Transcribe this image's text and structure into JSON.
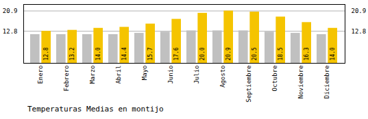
{
  "chart_data": {
    "type": "bar",
    "title": "Temperaturas Medias en montijo",
    "categories": [
      "Enero",
      "Febrero",
      "Marzo",
      "Abril",
      "Mayo",
      "Junio",
      "Julio",
      "Agosto",
      "Septiembre",
      "Octubre",
      "Noviembre",
      "Diciembre"
    ],
    "series": [
      {
        "color": "#C0C0C0",
        "values": [
          11.5,
          11.5,
          11.5,
          11.5,
          12.0,
          12.5,
          13.0,
          13.0,
          13.0,
          12.5,
          12.0,
          11.5
        ]
      },
      {
        "color": "#F5C400",
        "values": [
          12.8,
          13.2,
          14.0,
          14.4,
          15.7,
          17.6,
          20.0,
          20.9,
          20.5,
          18.5,
          16.3,
          14.0
        ],
        "value_labels": [
          "12.8",
          "13.2",
          "14.0",
          "14.4",
          "15.7",
          "17.6",
          "20.0",
          "20.9",
          "20.5",
          "18.5",
          "16.3",
          "14.0"
        ],
        "data_labels": true
      }
    ],
    "ylim": [
      0,
      23.5
    ],
    "yticks": [
      12.8,
      20.9
    ],
    "grid": true
  }
}
